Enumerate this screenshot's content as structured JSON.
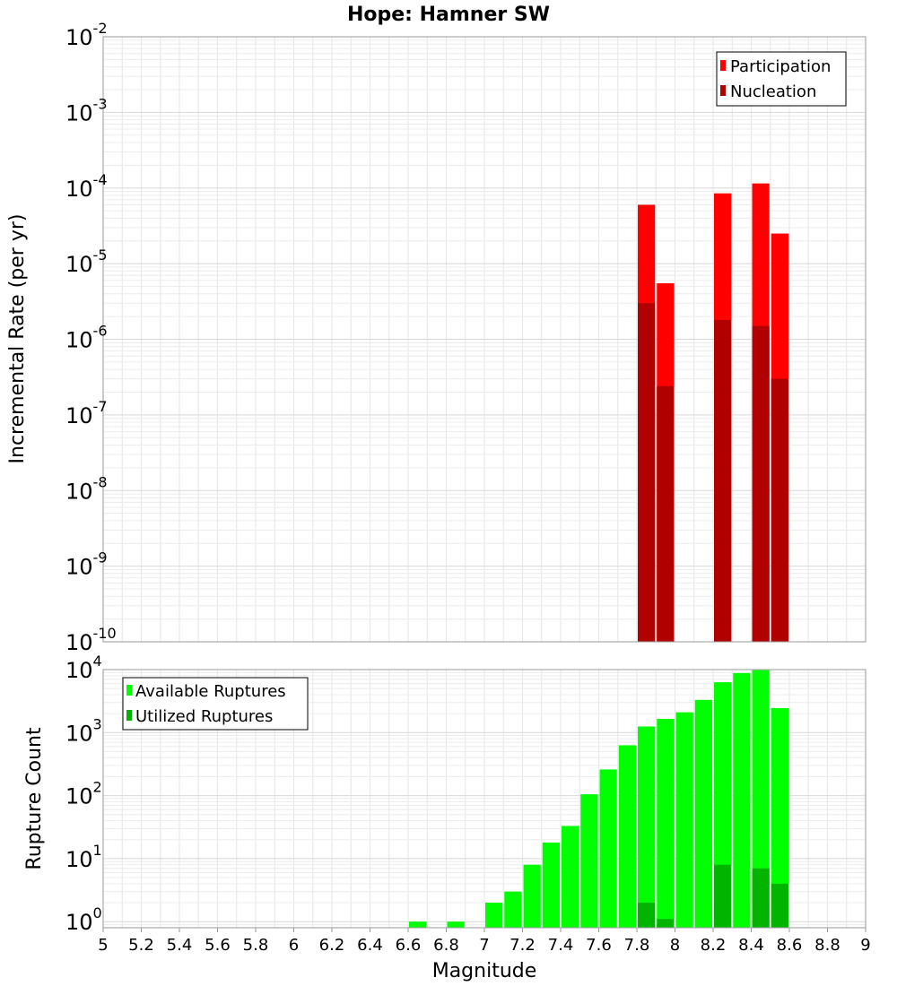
{
  "chart_data": [
    {
      "type": "bar",
      "title": "Hope: Hamner SW",
      "xlabel": "",
      "ylabel": "Incremental Rate (per yr)",
      "yscale": "log",
      "ylim": [
        1e-10,
        0.01
      ],
      "xlim": [
        5,
        9
      ],
      "yticks": [
        {
          "base": "10",
          "exp": "-10",
          "value": 1e-10
        },
        {
          "base": "10",
          "exp": "-9",
          "value": 1e-09
        },
        {
          "base": "10",
          "exp": "-8",
          "value": 1e-08
        },
        {
          "base": "10",
          "exp": "-7",
          "value": 1e-07
        },
        {
          "base": "10",
          "exp": "-6",
          "value": 1e-06
        },
        {
          "base": "10",
          "exp": "-5",
          "value": 1e-05
        },
        {
          "base": "10",
          "exp": "-4",
          "value": 0.0001
        },
        {
          "base": "10",
          "exp": "-3",
          "value": 0.001
        },
        {
          "base": "10",
          "exp": "-2",
          "value": 0.01
        }
      ],
      "legend_position": "top-right",
      "series": [
        {
          "name": "Participation",
          "color": "#ff0000",
          "points": [
            {
              "x": 7.85,
              "y": 6e-05
            },
            {
              "x": 7.95,
              "y": 5.5e-06
            },
            {
              "x": 8.25,
              "y": 8.5e-05
            },
            {
              "x": 8.45,
              "y": 0.000115
            },
            {
              "x": 8.55,
              "y": 2.5e-05
            }
          ]
        },
        {
          "name": "Nucleation",
          "color": "#b00000",
          "points": [
            {
              "x": 7.85,
              "y": 3e-06
            },
            {
              "x": 7.95,
              "y": 2.4e-07
            },
            {
              "x": 8.25,
              "y": 1.8e-06
            },
            {
              "x": 8.45,
              "y": 1.5e-06
            },
            {
              "x": 8.55,
              "y": 3e-07
            }
          ]
        }
      ]
    },
    {
      "type": "bar",
      "title": "",
      "xlabel": "Magnitude",
      "ylabel": "Rupture Count",
      "yscale": "log",
      "ylim": [
        0.8,
        10000
      ],
      "xlim": [
        5,
        9
      ],
      "xticks": [
        "5",
        "5.2",
        "5.4",
        "5.6",
        "5.8",
        "6",
        "6.2",
        "6.4",
        "6.6",
        "6.8",
        "7",
        "7.2",
        "7.4",
        "7.6",
        "7.8",
        "8",
        "8.2",
        "8.4",
        "8.6",
        "8.8",
        "9"
      ],
      "yticks": [
        {
          "base": "10",
          "exp": "0",
          "value": 1
        },
        {
          "base": "10",
          "exp": "1",
          "value": 10
        },
        {
          "base": "10",
          "exp": "2",
          "value": 100
        },
        {
          "base": "10",
          "exp": "3",
          "value": 1000
        },
        {
          "base": "10",
          "exp": "4",
          "value": 10000
        }
      ],
      "legend_position": "top-left",
      "series": [
        {
          "name": "Available Ruptures",
          "color": "#00ff00",
          "points": [
            {
              "x": 6.65,
              "y": 1
            },
            {
              "x": 6.85,
              "y": 1
            },
            {
              "x": 7.05,
              "y": 2
            },
            {
              "x": 7.15,
              "y": 3
            },
            {
              "x": 7.25,
              "y": 8
            },
            {
              "x": 7.35,
              "y": 18
            },
            {
              "x": 7.45,
              "y": 33
            },
            {
              "x": 7.55,
              "y": 105
            },
            {
              "x": 7.65,
              "y": 260
            },
            {
              "x": 7.75,
              "y": 630
            },
            {
              "x": 7.85,
              "y": 1250
            },
            {
              "x": 7.95,
              "y": 1650
            },
            {
              "x": 8.05,
              "y": 2100
            },
            {
              "x": 8.15,
              "y": 3300
            },
            {
              "x": 8.25,
              "y": 6300
            },
            {
              "x": 8.35,
              "y": 8800
            },
            {
              "x": 8.45,
              "y": 9800
            },
            {
              "x": 8.55,
              "y": 2450
            }
          ]
        },
        {
          "name": "Utilized Ruptures",
          "color": "#00b400",
          "points": [
            {
              "x": 7.85,
              "y": 2
            },
            {
              "x": 7.95,
              "y": 1.1
            },
            {
              "x": 8.25,
              "y": 8
            },
            {
              "x": 8.45,
              "y": 7
            },
            {
              "x": 8.55,
              "y": 4
            }
          ]
        }
      ]
    }
  ]
}
